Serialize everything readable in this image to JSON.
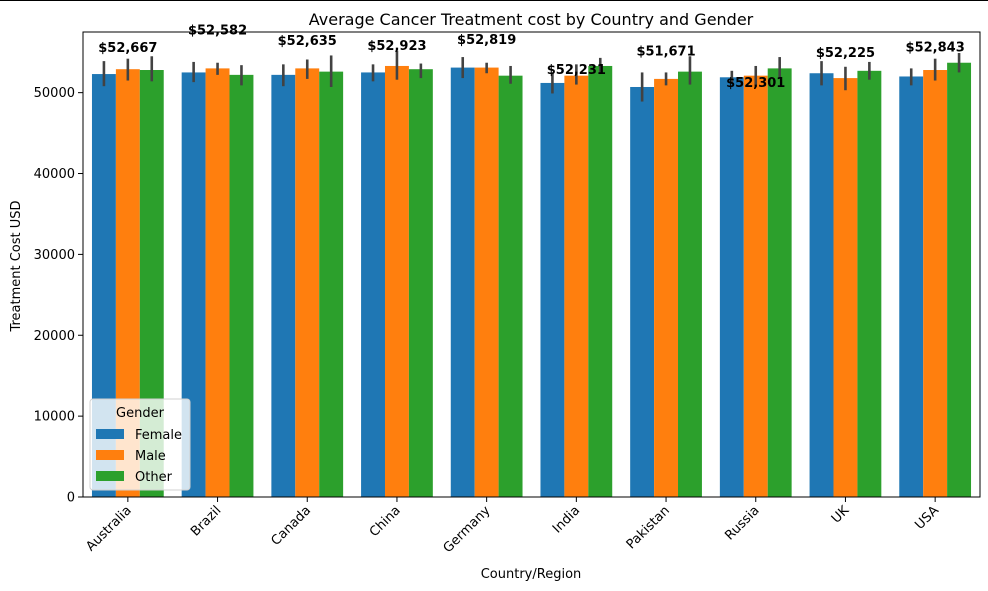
{
  "chart_data": {
    "type": "bar",
    "title": "Average Cancer Treatment cost by Country and Gender",
    "xlabel": "Country/Region",
    "ylabel": "Treatment Cost USD",
    "ylim": [
      0,
      57500
    ],
    "yticks": [
      0,
      10000,
      20000,
      30000,
      40000,
      50000
    ],
    "categories": [
      "Australia",
      "Brazil",
      "Canada",
      "China",
      "Germany",
      "India",
      "Pakistan",
      "Russia",
      "UK",
      "USA"
    ],
    "series": [
      {
        "name": "Female",
        "color": "#1f77b4",
        "values": [
          52300,
          52500,
          52200,
          52500,
          53100,
          51200,
          50700,
          51900,
          52400,
          52000
        ],
        "err": [
          [
            50800,
            53900
          ],
          [
            51300,
            53800
          ],
          [
            50800,
            53500
          ],
          [
            51400,
            53500
          ],
          [
            51800,
            54400
          ],
          [
            49900,
            52400
          ],
          [
            48900,
            52500
          ],
          [
            51200,
            52700
          ],
          [
            50900,
            53900
          ],
          [
            50900,
            53000
          ]
        ]
      },
      {
        "name": "Male",
        "color": "#ff7f0e",
        "values": [
          52900,
          53000,
          53000,
          53300,
          53100,
          52100,
          51700,
          52100,
          51800,
          52800
        ],
        "err": [
          [
            51500,
            54200
          ],
          [
            52200,
            53700
          ],
          [
            51700,
            54100
          ],
          [
            51600,
            55200
          ],
          [
            52400,
            53700
          ],
          [
            51000,
            53500
          ],
          [
            50900,
            52500
          ],
          [
            50900,
            53300
          ],
          [
            50300,
            53200
          ],
          [
            51500,
            54200
          ]
        ]
      },
      {
        "name": "Other",
        "color": "#2ca02c",
        "values": [
          52800,
          52200,
          52600,
          52900,
          52100,
          53300,
          52600,
          53000,
          52700,
          53700
        ],
        "err": [
          [
            51400,
            54500
          ],
          [
            50900,
            53400
          ],
          [
            50700,
            54600
          ],
          [
            51800,
            53600
          ],
          [
            51100,
            53300
          ],
          [
            52300,
            54300
          ],
          [
            51000,
            54500
          ],
          [
            51800,
            54400
          ],
          [
            51600,
            53800
          ],
          [
            52500,
            54900
          ]
        ]
      }
    ],
    "annotations": [
      "$52,667",
      "$52,582",
      "$52,635",
      "$52,923",
      "$52,819",
      "$52,231",
      "$51,671",
      "$52,301",
      "$52,225",
      "$52,843"
    ],
    "annotation_values": [
      55000,
      57200,
      55900,
      55300,
      56000,
      52300,
      54600,
      50700,
      54400,
      55100
    ],
    "legend": {
      "title": "Gender",
      "position": "lower-left"
    },
    "grid": false
  }
}
